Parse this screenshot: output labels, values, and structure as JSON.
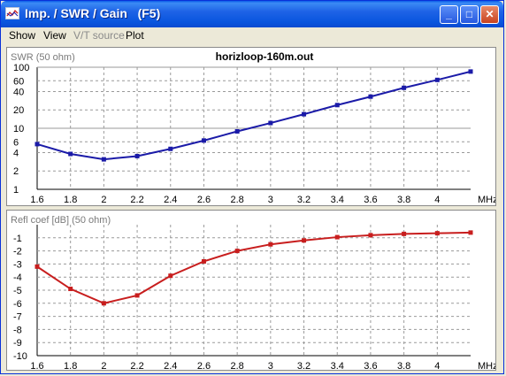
{
  "window": {
    "title": "Imp. / SWR / Gain   (F5)",
    "buttons": {
      "minimize": "_",
      "maximize": "□",
      "close": "✕"
    }
  },
  "menu": [
    {
      "label": "Show",
      "enabled": true
    },
    {
      "label": "View",
      "enabled": true
    },
    {
      "label": "V/T source",
      "enabled": false
    },
    {
      "label": "Plot",
      "enabled": true
    }
  ],
  "colors": {
    "swr": "#1b1ba8",
    "refl": "#c81e1e",
    "grid": "#9a9a9a"
  },
  "chart_data": [
    {
      "type": "line",
      "title": "horizloop-160m.out",
      "ylabel": "SWR (50 ohm)",
      "xunit": "MHz",
      "yscale": "log",
      "xlim": [
        1.6,
        4.2
      ],
      "ylim": [
        1,
        100
      ],
      "xticks": [
        1.6,
        1.8,
        2,
        2.2,
        2.4,
        2.6,
        2.8,
        3,
        3.2,
        3.4,
        3.6,
        3.8,
        4
      ],
      "xticklabels": [
        "1.6",
        "1.8",
        "2",
        "2.2",
        "2.4",
        "2.6",
        "2.8",
        "3",
        "3.2",
        "3.4",
        "3.6",
        "3.8",
        "4"
      ],
      "yticks": [
        1,
        2,
        4,
        6,
        10,
        20,
        40,
        60,
        100
      ],
      "yticklabels": [
        "1",
        "2",
        "4",
        "6",
        "10",
        "20",
        "40",
        "60",
        "100"
      ],
      "grid": true,
      "series": [
        {
          "x": [
            1.6,
            1.8,
            2.0,
            2.2,
            2.4,
            2.6,
            2.8,
            3.0,
            3.2,
            3.4,
            3.6,
            3.8,
            4.0,
            4.2
          ],
          "y": [
            5.5,
            3.8,
            3.1,
            3.5,
            4.6,
            6.3,
            8.9,
            12.2,
            17.0,
            24.0,
            33.0,
            46.0,
            62.0,
            85.0
          ]
        }
      ]
    },
    {
      "type": "line",
      "ylabel": "Refl coef [dB] (50 ohm)",
      "xunit": "MHz",
      "xlim": [
        1.6,
        4.2
      ],
      "ylim": [
        -10,
        0
      ],
      "xticks": [
        1.6,
        1.8,
        2,
        2.2,
        2.4,
        2.6,
        2.8,
        3,
        3.2,
        3.4,
        3.6,
        3.8,
        4
      ],
      "xticklabels": [
        "1.6",
        "1.8",
        "2",
        "2.2",
        "2.4",
        "2.6",
        "2.8",
        "3",
        "3.2",
        "3.4",
        "3.6",
        "3.8",
        "4"
      ],
      "yticks": [
        -1,
        -2,
        -3,
        -4,
        -5,
        -6,
        -7,
        -8,
        -9,
        -10
      ],
      "yticklabels": [
        "-1",
        "-2",
        "-3",
        "-4",
        "-5",
        "-6",
        "-7",
        "-8",
        "-9",
        "-10"
      ],
      "grid": true,
      "series": [
        {
          "x": [
            1.6,
            1.8,
            2.0,
            2.2,
            2.4,
            2.6,
            2.8,
            3.0,
            3.2,
            3.4,
            3.6,
            3.8,
            4.0,
            4.2
          ],
          "y": [
            -3.2,
            -4.9,
            -6.0,
            -5.4,
            -3.9,
            -2.8,
            -2.0,
            -1.5,
            -1.2,
            -0.95,
            -0.8,
            -0.7,
            -0.65,
            -0.6
          ]
        }
      ]
    }
  ]
}
